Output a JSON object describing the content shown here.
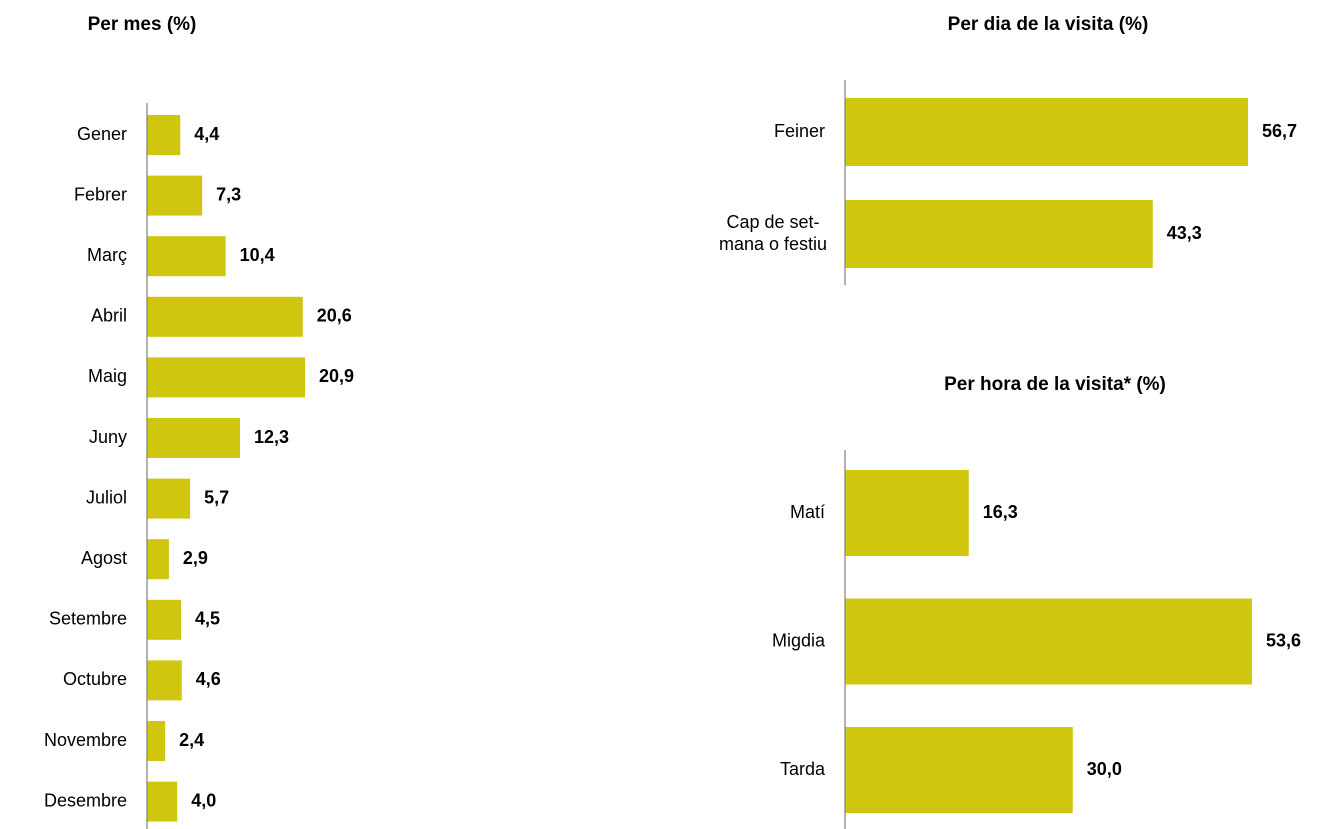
{
  "chart_data": [
    {
      "type": "bar",
      "orientation": "horizontal",
      "title": "Per mes (%)",
      "color": "#d1c60f",
      "categories": [
        "Gener",
        "Febrer",
        "Març",
        "Abril",
        "Maig",
        "Juny",
        "Juliol",
        "Agost",
        "Setembre",
        "Octubre",
        "Novembre",
        "Desembre"
      ],
      "values": [
        4.4,
        7.3,
        10.4,
        20.6,
        20.9,
        12.3,
        5.7,
        2.9,
        4.5,
        4.6,
        2.4,
        4.0
      ],
      "value_labels": [
        "4,4",
        "7,3",
        "10,4",
        "20,6",
        "20,9",
        "12,3",
        "5,7",
        "2,9",
        "4,5",
        "4,6",
        "2,4",
        "4,0"
      ]
    },
    {
      "type": "bar",
      "orientation": "horizontal",
      "title": "Per dia de la visita (%)",
      "color": "#d1c60f",
      "categories": [
        "Feiner",
        "Cap de set-\nmana o festiu"
      ],
      "values": [
        56.7,
        43.3
      ],
      "value_labels": [
        "56,7",
        "43,3"
      ]
    },
    {
      "type": "bar",
      "orientation": "horizontal",
      "title": "Per hora de la visita* (%)",
      "color": "#d1c60f",
      "categories": [
        "Matí",
        "Migdia",
        "Tarda"
      ],
      "values": [
        16.3,
        53.6,
        30.0
      ],
      "value_labels": [
        "16,3",
        "53,6",
        "30,0"
      ]
    }
  ]
}
